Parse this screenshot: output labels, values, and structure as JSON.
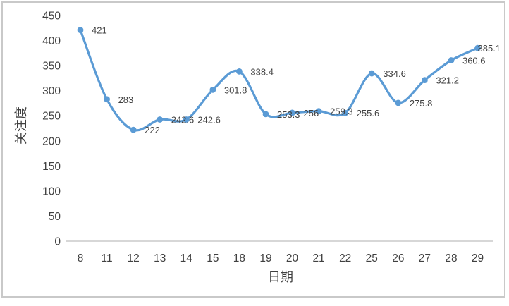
{
  "chart_data": {
    "type": "line",
    "categories": [
      "8",
      "11",
      "12",
      "13",
      "14",
      "15",
      "18",
      "19",
      "20",
      "21",
      "22",
      "25",
      "26",
      "27",
      "28",
      "29"
    ],
    "values": [
      421,
      283,
      222,
      242.6,
      242.6,
      301.8,
      338.4,
      253.3,
      256,
      259.3,
      255.6,
      334.6,
      275.8,
      321.2,
      360.6,
      385.1
    ],
    "data_labels": [
      "421",
      "283",
      "222",
      "242.6",
      "242.6",
      "301.8",
      "338.4",
      "253.3",
      "256",
      "259.3",
      "255.6",
      "334.6",
      "275.8",
      "321.2",
      "360.6",
      "385.1"
    ],
    "title": "",
    "xlabel": "日期",
    "ylabel": "关注度",
    "ylim": [
      0,
      450
    ],
    "yticks": [
      0,
      50,
      100,
      150,
      200,
      250,
      300,
      350,
      400,
      450
    ],
    "grid": false,
    "legend": false,
    "smooth": true,
    "marker": "circle",
    "line_color": "#5B9BD5",
    "text_color": "#404040",
    "axis_line_color": "#BFBFBF",
    "border_color": "#C9C9C9",
    "background": "#FFFFFF"
  }
}
